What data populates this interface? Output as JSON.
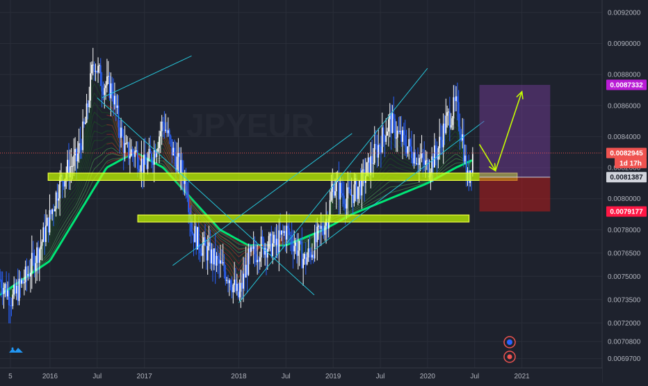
{
  "chart_data": {
    "type": "candlestick",
    "title": "",
    "watermark": "JPYEUR",
    "yaxis": {
      "range": [
        0.00691,
        0.00928
      ],
      "ticks": [
        "0.0092000",
        "0.0090000",
        "0.0088000",
        "0.0086000",
        "0.0084000",
        "0.0082000",
        "0.0080000",
        "0.0078000",
        "0.0076500",
        "0.0075000",
        "0.0073500",
        "0.0072000",
        "0.0070800",
        "0.0069700"
      ],
      "tick_values": [
        0.0092,
        0.009,
        0.0088,
        0.0086,
        0.0084,
        0.0082,
        0.008,
        0.0078,
        0.00765,
        0.0075,
        0.00735,
        0.0072,
        0.00708,
        0.00697
      ]
    },
    "xaxis": {
      "ticks": [
        {
          "label": "5",
          "t": 2015.58
        },
        {
          "label": "2016",
          "t": 2016.0
        },
        {
          "label": "Jul",
          "t": 2016.5
        },
        {
          "label": "2017",
          "t": 2017.0
        },
        {
          "label": "2018",
          "t": 2018.0
        },
        {
          "label": "Jul",
          "t": 2018.5
        },
        {
          "label": "2019",
          "t": 2019.0
        },
        {
          "label": "Jul",
          "t": 2019.5
        },
        {
          "label": "2020",
          "t": 2020.0
        },
        {
          "label": "Jul",
          "t": 2020.5
        },
        {
          "label": "2021",
          "t": 2021.0
        }
      ],
      "range": [
        2015.47,
        2021.85
      ]
    },
    "price_path": [
      [
        2015.47,
        0.00748
      ],
      [
        2015.6,
        0.00735
      ],
      [
        2015.75,
        0.0075
      ],
      [
        2015.9,
        0.0077
      ],
      [
        2016.0,
        0.00788
      ],
      [
        2016.1,
        0.0081
      ],
      [
        2016.2,
        0.0082
      ],
      [
        2016.28,
        0.00825
      ],
      [
        2016.38,
        0.0085
      ],
      [
        2016.46,
        0.0089
      ],
      [
        2016.55,
        0.00875
      ],
      [
        2016.66,
        0.0087
      ],
      [
        2016.72,
        0.0085
      ],
      [
        2016.8,
        0.0083
      ],
      [
        2016.9,
        0.0083
      ],
      [
        2017.0,
        0.0082
      ],
      [
        2017.1,
        0.0083
      ],
      [
        2017.2,
        0.0085
      ],
      [
        2017.3,
        0.0083
      ],
      [
        2017.45,
        0.0081
      ],
      [
        2017.5,
        0.0078
      ],
      [
        2017.6,
        0.0077
      ],
      [
        2017.75,
        0.0076
      ],
      [
        2017.9,
        0.0075
      ],
      [
        2018.0,
        0.00736
      ],
      [
        2018.1,
        0.0076
      ],
      [
        2018.25,
        0.0077
      ],
      [
        2018.4,
        0.0077
      ],
      [
        2018.5,
        0.0078
      ],
      [
        2018.6,
        0.0077
      ],
      [
        2018.7,
        0.0076
      ],
      [
        2018.8,
        0.0077
      ],
      [
        2018.95,
        0.0079
      ],
      [
        2019.0,
        0.0081
      ],
      [
        2019.15,
        0.008
      ],
      [
        2019.3,
        0.0081
      ],
      [
        2019.45,
        0.0083
      ],
      [
        2019.6,
        0.0085
      ],
      [
        2019.7,
        0.0084
      ],
      [
        2019.85,
        0.0083
      ],
      [
        2020.0,
        0.0082
      ],
      [
        2020.1,
        0.0083
      ],
      [
        2020.2,
        0.0085
      ],
      [
        2020.3,
        0.0086
      ],
      [
        2020.37,
        0.0084
      ],
      [
        2020.42,
        0.0081
      ],
      [
        2020.48,
        0.00829
      ]
    ],
    "ema_series": [
      {
        "color": "#00e676",
        "values": [
          [
            2015.47,
            0.00738
          ],
          [
            2016.0,
            0.0076
          ],
          [
            2016.3,
            0.0079
          ],
          [
            2016.6,
            0.0082
          ],
          [
            2016.9,
            0.0083
          ],
          [
            2017.2,
            0.0082
          ],
          [
            2017.5,
            0.008
          ],
          [
            2017.8,
            0.0078
          ],
          [
            2018.1,
            0.0077
          ],
          [
            2018.5,
            0.0077
          ],
          [
            2018.9,
            0.0078
          ],
          [
            2019.2,
            0.0079
          ],
          [
            2019.6,
            0.008
          ],
          [
            2020.0,
            0.0081
          ],
          [
            2020.3,
            0.0082
          ],
          [
            2020.48,
            0.00825
          ]
        ]
      }
    ],
    "horizontal_zones": [
      {
        "y_top": 0.008165,
        "y_bottom": 0.008118,
        "t_start": 2015.98,
        "t_end": 2020.95,
        "color": "#c6ff00"
      },
      {
        "y_top": 0.007895,
        "y_bottom": 0.00785,
        "t_start": 2016.93,
        "t_end": 2020.44,
        "color": "#c6ff00"
      }
    ],
    "trendlines": [
      {
        "t1": 2016.55,
        "y1": 0.00865,
        "t2": 2017.5,
        "y2": 0.00892,
        "color": "#26c6da"
      },
      {
        "t1": 2016.5,
        "y1": 0.00865,
        "t2": 2018.8,
        "y2": 0.00738,
        "color": "#26c6da"
      },
      {
        "t1": 2017.3,
        "y1": 0.00757,
        "t2": 2019.2,
        "y2": 0.00842,
        "color": "#26c6da"
      },
      {
        "t1": 2018.0,
        "y1": 0.00733,
        "t2": 2020.0,
        "y2": 0.00884,
        "color": "#26c6da"
      },
      {
        "t1": 2018.8,
        "y1": 0.00767,
        "t2": 2020.6,
        "y2": 0.0085,
        "color": "#26c6da"
      }
    ],
    "projection_arrows": [
      {
        "t1": 2020.55,
        "y1": 0.00835,
        "t2": 2020.72,
        "y2": 0.00818,
        "color": "#c6ff00"
      },
      {
        "t1": 2020.72,
        "y1": 0.00818,
        "t2": 2021.0,
        "y2": 0.00869,
        "color": "#c6ff00"
      }
    ],
    "position_box": {
      "t_start": 2020.55,
      "t_end": 2021.3,
      "entry": 0.0081387,
      "target": 0.0087332,
      "stop": 0.0079177
    },
    "current_price_line": 0.0082945,
    "price_tags": [
      {
        "text": "0.0087332",
        "value": 0.0087332,
        "bg": "#ba1cd6",
        "fg": "#ffffff"
      },
      {
        "text": "0.0082945",
        "value": 0.0082945,
        "bg": "#ef5350",
        "fg": "#ffffff"
      },
      {
        "text": "1d 17h",
        "value": 0.00823,
        "bg": "#ef5350",
        "fg": "#ffffff"
      },
      {
        "text": "0.0081387",
        "value": 0.0081387,
        "bg": "#d1d4dc",
        "fg": "#131722"
      },
      {
        "text": "0.0079177",
        "value": 0.0079177,
        "bg": "#ff1744",
        "fg": "#ffffff"
      }
    ],
    "grid": true
  }
}
